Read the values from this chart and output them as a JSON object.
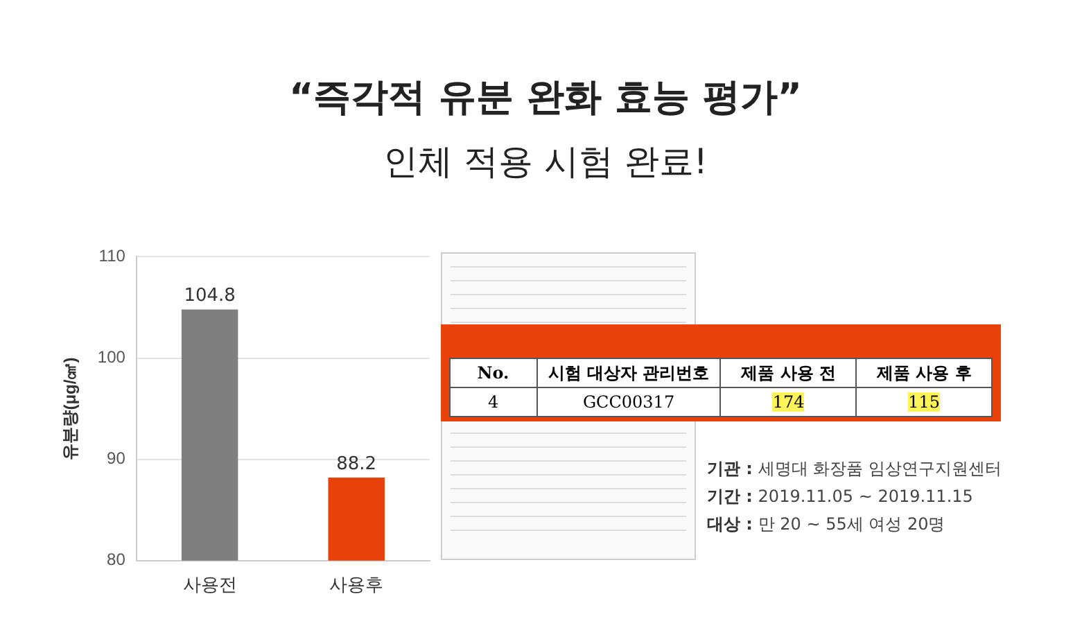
{
  "chart_data": {
    "type": "bar",
    "title": "“즉각적 유분 완화 효능 평가”",
    "subtitle": "인체 적용 시험 완료!",
    "ylabel": "유분량(μg/㎠)",
    "categories": [
      "사용전",
      "사용후"
    ],
    "values": [
      104.8,
      88.2
    ],
    "colors": [
      "#7f7f7f",
      "#e8410a"
    ],
    "ylim": [
      80,
      110
    ],
    "yticks": [
      80,
      90,
      100,
      110
    ],
    "grid": "y",
    "data_labels": true,
    "annotations": [
      "No.",
      "시험 대상자 관리번호",
      "제품 사용 전",
      "제품 사용 후",
      "4",
      "GCC00317",
      "174",
      "115",
      "기관 : 세명대 화장품 임상연구지원센터",
      "기간 : 2019.11.05 ~ 2019.11.15",
      "대상 : 만 20 ~ 55세 여성 20명"
    ]
  }
}
